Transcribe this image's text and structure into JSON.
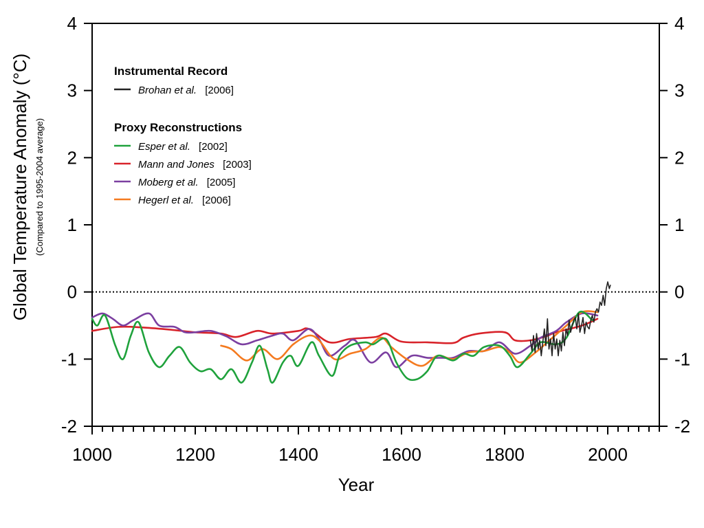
{
  "chart_data": {
    "type": "line",
    "xlabel": "Year",
    "ylabel": "Global Temperature Anomaly (°C)",
    "ylabel_sub": "(Compared to 1995-2004 average)",
    "xlim": [
      1000,
      2100
    ],
    "ylim": [
      -2,
      4
    ],
    "x_ticks": [
      1000,
      1200,
      1400,
      1600,
      1800,
      2000
    ],
    "y_ticks": [
      -2,
      -1,
      0,
      1,
      2,
      3,
      4
    ],
    "x_tick_labels": [
      "1000",
      "1200",
      "1400",
      "1600",
      "1800",
      "2000"
    ],
    "y_tick_labels": [
      "-2",
      "-1",
      "0",
      "1",
      "2",
      "3",
      "4"
    ],
    "reference_line": {
      "y": 0,
      "style": "dotted"
    },
    "grid": false,
    "legend": {
      "placement": "top-left",
      "groups": [
        {
          "heading": "Instrumental Record",
          "entries": [
            {
              "name": "Brohan et al.",
              "year": "[2006]",
              "color": "#222222"
            }
          ]
        },
        {
          "heading": "Proxy Reconstructions",
          "entries": [
            {
              "name": "Esper et al.",
              "year": "[2002]",
              "color": "#1fa23c"
            },
            {
              "name": "Mann and Jones",
              "year": "[2003]",
              "color": "#d8232a"
            },
            {
              "name": "Moberg et al.",
              "year": "[2005]",
              "color": "#7b3fa0"
            },
            {
              "name": "Hegerl et al.",
              "year": "[2006]",
              "color": "#f47a1f"
            }
          ]
        }
      ]
    },
    "series": [
      {
        "name": "Mann and Jones [2003]",
        "color": "#d8232a",
        "x": [
          1000,
          1050,
          1100,
          1150,
          1200,
          1250,
          1280,
          1320,
          1350,
          1400,
          1420,
          1460,
          1500,
          1550,
          1570,
          1600,
          1650,
          1700,
          1720,
          1750,
          1800,
          1820,
          1850,
          1880,
          1900,
          1950,
          1980
        ],
        "y": [
          -0.58,
          -0.52,
          -0.53,
          -0.56,
          -0.6,
          -0.62,
          -0.67,
          -0.58,
          -0.62,
          -0.58,
          -0.55,
          -0.75,
          -0.7,
          -0.67,
          -0.62,
          -0.74,
          -0.75,
          -0.76,
          -0.68,
          -0.62,
          -0.6,
          -0.72,
          -0.72,
          -0.66,
          -0.6,
          -0.5,
          -0.4
        ]
      },
      {
        "name": "Moberg et al. [2005]",
        "color": "#7b3fa0",
        "x": [
          1000,
          1020,
          1040,
          1060,
          1080,
          1110,
          1130,
          1160,
          1180,
          1200,
          1230,
          1260,
          1290,
          1320,
          1350,
          1370,
          1390,
          1420,
          1440,
          1460,
          1490,
          1510,
          1540,
          1570,
          1590,
          1620,
          1650,
          1680,
          1700,
          1730,
          1760,
          1790,
          1820,
          1850,
          1870,
          1900,
          1920,
          1950,
          1980
        ],
        "y": [
          -0.38,
          -0.32,
          -0.4,
          -0.5,
          -0.42,
          -0.32,
          -0.5,
          -0.52,
          -0.6,
          -0.6,
          -0.58,
          -0.66,
          -0.78,
          -0.72,
          -0.65,
          -0.62,
          -0.72,
          -0.55,
          -0.7,
          -0.95,
          -0.8,
          -0.72,
          -1.05,
          -0.9,
          -1.12,
          -0.95,
          -0.98,
          -0.98,
          -0.98,
          -0.88,
          -0.88,
          -0.75,
          -0.92,
          -0.8,
          -0.68,
          -0.58,
          -0.45,
          -0.32,
          -0.35
        ]
      },
      {
        "name": "Hegerl et al. [2006]",
        "color": "#f47a1f",
        "x": [
          1250,
          1270,
          1300,
          1330,
          1360,
          1390,
          1420,
          1440,
          1470,
          1500,
          1530,
          1560,
          1580,
          1610,
          1640,
          1670,
          1700,
          1730,
          1760,
          1790,
          1810,
          1830,
          1860,
          1890,
          1920,
          1950,
          1980
        ],
        "y": [
          -0.8,
          -0.85,
          -1.02,
          -0.85,
          -1.0,
          -0.78,
          -0.65,
          -0.72,
          -1.0,
          -0.92,
          -0.85,
          -0.68,
          -0.82,
          -1.0,
          -1.1,
          -0.95,
          -1.0,
          -0.9,
          -0.88,
          -0.82,
          -0.9,
          -1.05,
          -0.9,
          -0.7,
          -0.5,
          -0.3,
          -0.3
        ]
      },
      {
        "name": "Esper et al. [2002]",
        "color": "#1fa23c",
        "x": [
          1000,
          1010,
          1025,
          1045,
          1060,
          1075,
          1090,
          1110,
          1130,
          1150,
          1170,
          1190,
          1210,
          1230,
          1250,
          1270,
          1290,
          1310,
          1325,
          1340,
          1350,
          1370,
          1385,
          1400,
          1425,
          1440,
          1465,
          1480,
          1500,
          1530,
          1545,
          1570,
          1590,
          1610,
          1630,
          1650,
          1670,
          1700,
          1720,
          1740,
          1760,
          1790,
          1810,
          1825,
          1850,
          1870,
          1900,
          1920,
          1945,
          1970
        ],
        "y": [
          -0.4,
          -0.5,
          -0.35,
          -0.8,
          -1.0,
          -0.65,
          -0.45,
          -0.9,
          -1.12,
          -0.95,
          -0.82,
          -1.05,
          -1.18,
          -1.15,
          -1.3,
          -1.15,
          -1.35,
          -1.05,
          -0.8,
          -1.15,
          -1.35,
          -1.05,
          -0.95,
          -1.1,
          -0.75,
          -0.95,
          -1.25,
          -0.95,
          -0.8,
          -0.75,
          -0.78,
          -0.7,
          -1.05,
          -1.28,
          -1.3,
          -1.18,
          -0.95,
          -1.02,
          -0.92,
          -0.95,
          -0.82,
          -0.8,
          -0.95,
          -1.12,
          -0.92,
          -0.75,
          -0.78,
          -0.68,
          -0.3,
          -0.42
        ]
      },
      {
        "name": "Brohan et al. [2006]",
        "color": "#222222",
        "x": [
          1850,
          1853,
          1856,
          1859,
          1862,
          1865,
          1868,
          1871,
          1874,
          1877,
          1880,
          1883,
          1886,
          1889,
          1892,
          1895,
          1898,
          1901,
          1904,
          1907,
          1910,
          1913,
          1916,
          1919,
          1922,
          1925,
          1928,
          1931,
          1934,
          1937,
          1940,
          1943,
          1946,
          1949,
          1952,
          1955,
          1958,
          1961,
          1964,
          1967,
          1970,
          1973,
          1976,
          1979,
          1982,
          1985,
          1988,
          1991,
          1994,
          1997,
          2000,
          2003,
          2005
        ],
        "y": [
          -0.72,
          -0.88,
          -0.65,
          -0.9,
          -0.62,
          -0.85,
          -0.72,
          -0.95,
          -0.75,
          -0.55,
          -0.8,
          -0.4,
          -0.85,
          -0.7,
          -0.95,
          -0.62,
          -0.85,
          -0.7,
          -0.95,
          -0.72,
          -0.88,
          -0.6,
          -0.8,
          -0.55,
          -0.65,
          -0.42,
          -0.6,
          -0.5,
          -0.42,
          -0.38,
          -0.55,
          -0.32,
          -0.6,
          -0.5,
          -0.38,
          -0.62,
          -0.45,
          -0.52,
          -0.55,
          -0.42,
          -0.35,
          -0.45,
          -0.3,
          -0.25,
          -0.3,
          -0.15,
          -0.2,
          -0.05,
          -0.2,
          0.05,
          0.15,
          0.05,
          0.1
        ]
      }
    ]
  }
}
